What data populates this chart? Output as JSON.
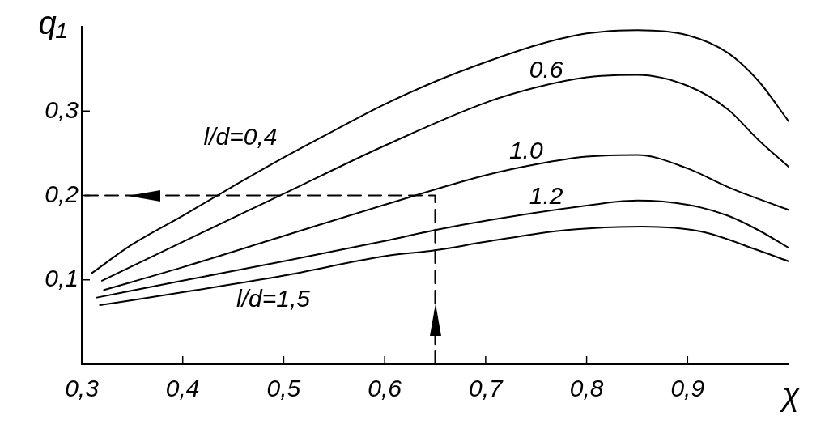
{
  "chart_data": {
    "type": "line",
    "xlabel": "χ",
    "ylabel": "q₁",
    "xlim": [
      0.3,
      1.0
    ],
    "ylim": [
      0,
      0.4
    ],
    "xticks": [
      {
        "value": 0.3,
        "label": "0,3"
      },
      {
        "value": 0.4,
        "label": "0,4"
      },
      {
        "value": 0.5,
        "label": "0,5"
      },
      {
        "value": 0.6,
        "label": "0,6"
      },
      {
        "value": 0.7,
        "label": "0,7"
      },
      {
        "value": 0.8,
        "label": "0,8"
      },
      {
        "value": 0.9,
        "label": "0,9"
      }
    ],
    "yticks": [
      {
        "value": 0.1,
        "label": "0,1"
      },
      {
        "value": 0.2,
        "label": "0,2"
      },
      {
        "value": 0.3,
        "label": "0,3"
      }
    ],
    "legend": false,
    "marker": "none",
    "series": [
      {
        "name": "l/d=0,4",
        "color": "#000000",
        "x": [
          0.31,
          0.35,
          0.4,
          0.45,
          0.5,
          0.55,
          0.6,
          0.65,
          0.7,
          0.75,
          0.8,
          0.85,
          0.9,
          0.94,
          0.97,
          1.0
        ],
        "values": [
          0.108,
          0.142,
          0.176,
          0.211,
          0.245,
          0.277,
          0.308,
          0.335,
          0.358,
          0.378,
          0.392,
          0.396,
          0.39,
          0.369,
          0.336,
          0.288
        ]
      },
      {
        "name": "0.6",
        "color": "#000000",
        "x": [
          0.32,
          0.4,
          0.5,
          0.6,
          0.7,
          0.75,
          0.8,
          0.85,
          0.9,
          0.94,
          0.97,
          1.0
        ],
        "values": [
          0.099,
          0.145,
          0.202,
          0.259,
          0.31,
          0.328,
          0.34,
          0.343,
          0.33,
          0.302,
          0.266,
          0.234
        ]
      },
      {
        "name": "1.0",
        "color": "#000000",
        "x": [
          0.322,
          0.4,
          0.5,
          0.6,
          0.7,
          0.75,
          0.8,
          0.85,
          0.9,
          0.94,
          0.97,
          1.0
        ],
        "values": [
          0.088,
          0.115,
          0.152,
          0.189,
          0.224,
          0.237,
          0.246,
          0.248,
          0.232,
          0.21,
          0.196,
          0.183
        ]
      },
      {
        "name": "1.2",
        "color": "#000000",
        "x": [
          0.315,
          0.4,
          0.5,
          0.6,
          0.65,
          0.7,
          0.8,
          0.85,
          0.9,
          0.94,
          0.97,
          1.0
        ],
        "values": [
          0.079,
          0.099,
          0.122,
          0.146,
          0.159,
          0.17,
          0.188,
          0.194,
          0.189,
          0.176,
          0.159,
          0.138
        ]
      },
      {
        "name": "l/d=1,5",
        "color": "#000000",
        "x": [
          0.318,
          0.414,
          0.5,
          0.6,
          0.65,
          0.7,
          0.78,
          0.855,
          0.914,
          0.97,
          1.0
        ],
        "values": [
          0.07,
          0.088,
          0.105,
          0.128,
          0.135,
          0.145,
          0.159,
          0.163,
          0.157,
          0.135,
          0.122
        ]
      },
      {
        "color": "#000000",
        "line_style": "dashed",
        "x": [
          0.65,
          0.65,
          0.3
        ],
        "values": [
          0,
          0.2,
          0.2
        ]
      }
    ]
  }
}
